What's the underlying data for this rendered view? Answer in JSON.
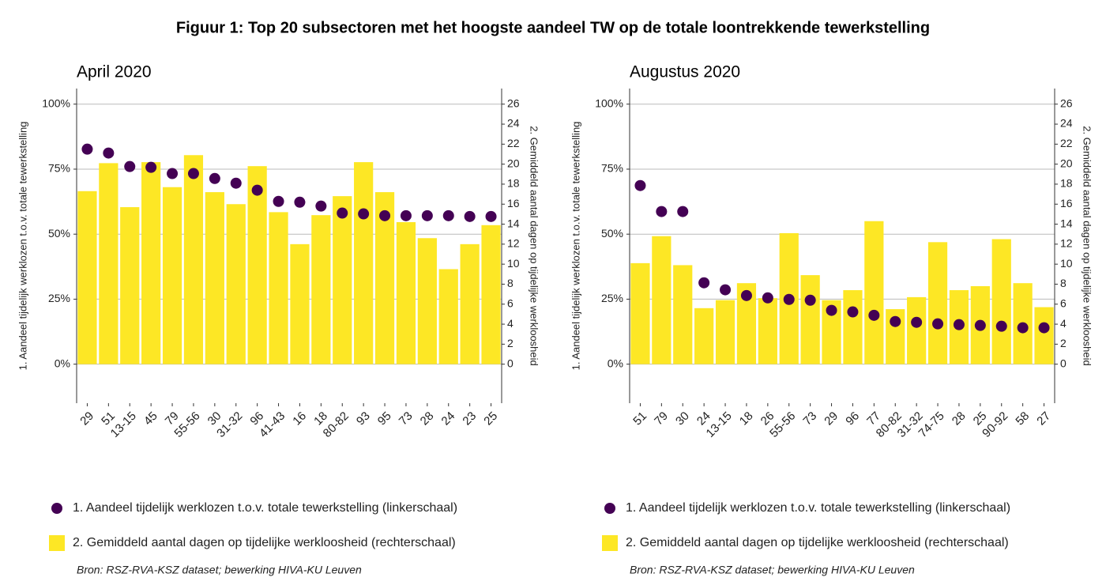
{
  "title": "Figuur 1: Top 20 subsectoren met het hoogste aandeel TW op de totale loontrekkende tewerkstelling",
  "chart_data": [
    {
      "type": "combo",
      "title": "April 2020",
      "y_label": "1. Aandeel tijdelijk werklozen t.o.v. totale tewerkstelling",
      "y2_label": "2. Gemiddeld aantal dagen op tijdelijke werkloosheid",
      "source": "Bron: RSZ-RVA-KSZ dataset; bewerking HIVA-KU Leuven",
      "categories": [
        "29",
        "51",
        "13-15",
        "45",
        "79",
        "55-56",
        "30",
        "31-32",
        "96",
        "41-43",
        "16",
        "18",
        "80-82",
        "93",
        "95",
        "73",
        "28",
        "24",
        "23",
        "25"
      ],
      "series": [
        {
          "name": "1. Aandeel tijdelijk werklozen t.o.v. totale tewerkstelling (linkerschaal)",
          "type": "scatter",
          "color": "#440154",
          "axis": "y",
          "values": [
            82.7,
            81.2,
            76.0,
            75.7,
            73.3,
            73.3,
            71.4,
            69.6,
            66.9,
            62.6,
            62.3,
            60.8,
            58.1,
            57.8,
            57.1,
            57.1,
            57.1,
            57.1,
            56.8,
            56.8
          ]
        },
        {
          "name": "2. Gemiddeld aantal dagen op tijdelijke werkloosheid (rechterschaal)",
          "type": "bar",
          "color": "#fde725",
          "axis": "y2",
          "values": [
            17.3,
            20.1,
            15.7,
            20.2,
            17.7,
            20.9,
            17.2,
            16.0,
            19.8,
            15.2,
            12.0,
            14.9,
            16.8,
            20.2,
            17.2,
            14.2,
            12.6,
            9.5,
            12.0,
            13.9
          ]
        }
      ],
      "ylim": [
        -15,
        106
      ],
      "yticks": [
        {
          "value": 0,
          "label": "0%"
        },
        {
          "value": 25,
          "label": "25%"
        },
        {
          "value": 50,
          "label": "50%"
        },
        {
          "value": 75,
          "label": "75%"
        },
        {
          "value": 100,
          "label": "100%"
        }
      ],
      "y2lim": [
        -3.9,
        27.56
      ],
      "y2ticks": [
        0,
        2,
        4,
        6,
        8,
        10,
        12,
        14,
        16,
        18,
        20,
        22,
        24,
        26
      ],
      "grid": true
    },
    {
      "type": "combo",
      "title": "Augustus 2020",
      "y_label": "1. Aandeel tijdelijk werklozen t.o.v. totale tewerkstelling",
      "y2_label": "2. Gemiddeld aantal dagen op tijdelijke werkloosheid",
      "source": "Bron: RSZ-RVA-KSZ dataset; bewerking HIVA-KU Leuven",
      "categories": [
        "51",
        "79",
        "30",
        "24",
        "13-15",
        "18",
        "26",
        "55-56",
        "73",
        "29",
        "96",
        "77",
        "80-82",
        "31-32",
        "74-75",
        "28",
        "25",
        "90-92",
        "58",
        "27"
      ],
      "series": [
        {
          "name": "1. Aandeel tijdelijk werklozen t.o.v. totale tewerkstelling (linkerschaal)",
          "type": "scatter",
          "color": "#440154",
          "axis": "y",
          "values": [
            68.7,
            58.7,
            58.7,
            31.3,
            28.6,
            26.4,
            25.5,
            24.9,
            24.6,
            20.7,
            20.1,
            18.8,
            16.4,
            16.1,
            15.5,
            15.2,
            14.9,
            14.6,
            14.0,
            14.0
          ]
        },
        {
          "name": "2. Gemiddeld aantal dagen op tijdelijke werkloosheid (rechterschaal)",
          "type": "bar",
          "color": "#fde725",
          "axis": "y2",
          "values": [
            10.1,
            12.8,
            9.9,
            5.6,
            6.4,
            8.1,
            6.6,
            13.1,
            8.9,
            6.4,
            7.4,
            14.3,
            5.5,
            6.7,
            12.2,
            7.4,
            7.8,
            12.5,
            8.1,
            5.7
          ]
        }
      ],
      "ylim": [
        -15,
        106
      ],
      "yticks": [
        {
          "value": 0,
          "label": "0%"
        },
        {
          "value": 25,
          "label": "25%"
        },
        {
          "value": 50,
          "label": "50%"
        },
        {
          "value": 75,
          "label": "75%"
        },
        {
          "value": 100,
          "label": "100%"
        }
      ],
      "y2lim": [
        -3.9,
        27.56
      ],
      "y2ticks": [
        0,
        2,
        4,
        6,
        8,
        10,
        12,
        14,
        16,
        18,
        20,
        22,
        24,
        26
      ],
      "grid": true
    }
  ]
}
